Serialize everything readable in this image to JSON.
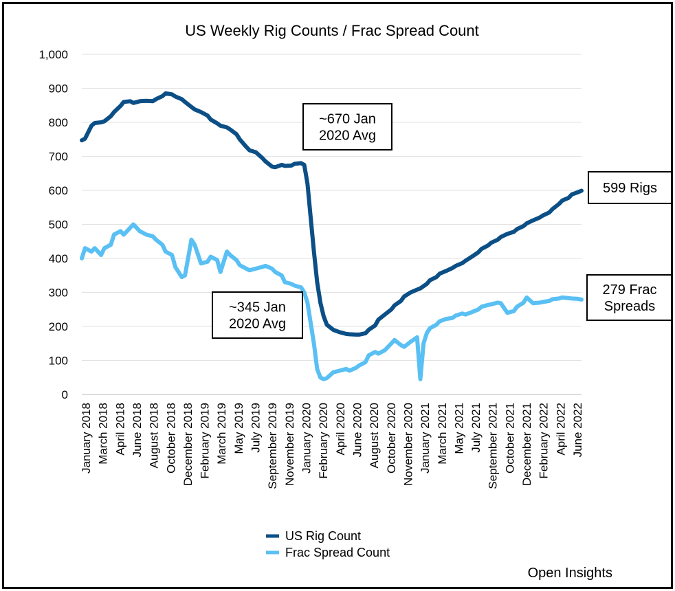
{
  "chart_data": {
    "type": "line",
    "title": "US Weekly Rig Counts / Frac Spread Count",
    "ylim": [
      0,
      1000
    ],
    "y_ticks": [
      "0",
      "100",
      "200",
      "300",
      "400",
      "500",
      "600",
      "700",
      "800",
      "900",
      "1,000"
    ],
    "x_ticks": [
      "January 2018",
      "March 2018",
      "April 2018",
      "June 2018",
      "August 2018",
      "October 2018",
      "December 2018",
      "February 2019",
      "March 2019",
      "May 2019",
      "July 2019",
      "September 2019",
      "November 2019",
      "January 2020",
      "February 2020",
      "April 2020",
      "June 2020",
      "August 2020",
      "October 2020",
      "November 2020",
      "January 2021",
      "March 2021",
      "May 2021",
      "July 2021",
      "September 2021",
      "October 2021",
      "December 2021",
      "February 2022",
      "April 2022",
      "June 2022"
    ],
    "grid": true,
    "legend_position": "bottom",
    "series": [
      {
        "name": "US Rig Count",
        "color": "#0b4f86",
        "points": [
          [
            0,
            747
          ],
          [
            1,
            752
          ],
          [
            3,
            790
          ],
          [
            4,
            798
          ],
          [
            6,
            800
          ],
          [
            7,
            803
          ],
          [
            9,
            818
          ],
          [
            10,
            830
          ],
          [
            12,
            848
          ],
          [
            13,
            860
          ],
          [
            15,
            862
          ],
          [
            16,
            857
          ],
          [
            18,
            862
          ],
          [
            20,
            863
          ],
          [
            22,
            862
          ],
          [
            23,
            868
          ],
          [
            25,
            877
          ],
          [
            26,
            885
          ],
          [
            28,
            882
          ],
          [
            29,
            876
          ],
          [
            31,
            868
          ],
          [
            32,
            860
          ],
          [
            34,
            845
          ],
          [
            35,
            838
          ],
          [
            37,
            830
          ],
          [
            39,
            820
          ],
          [
            40,
            808
          ],
          [
            42,
            797
          ],
          [
            43,
            790
          ],
          [
            45,
            785
          ],
          [
            46,
            779
          ],
          [
            48,
            765
          ],
          [
            49,
            750
          ],
          [
            51,
            728
          ],
          [
            52,
            718
          ],
          [
            54,
            712
          ],
          [
            56,
            695
          ],
          [
            57,
            685
          ],
          [
            59,
            670
          ],
          [
            60,
            668
          ],
          [
            62,
            675
          ],
          [
            63,
            672
          ],
          [
            65,
            673
          ],
          [
            66,
            678
          ],
          [
            68,
            680
          ],
          [
            69,
            675
          ],
          [
            70,
            620
          ],
          [
            71,
            520
          ],
          [
            72,
            420
          ],
          [
            73,
            330
          ],
          [
            74,
            270
          ],
          [
            75,
            230
          ],
          [
            76,
            205
          ],
          [
            78,
            190
          ],
          [
            80,
            183
          ],
          [
            82,
            178
          ],
          [
            83,
            177
          ],
          [
            85,
            176
          ],
          [
            86,
            176
          ],
          [
            88,
            180
          ],
          [
            89,
            190
          ],
          [
            91,
            203
          ],
          [
            92,
            220
          ],
          [
            94,
            235
          ],
          [
            96,
            250
          ],
          [
            97,
            262
          ],
          [
            99,
            275
          ],
          [
            100,
            288
          ],
          [
            102,
            300
          ],
          [
            104,
            308
          ],
          [
            105,
            312
          ],
          [
            107,
            325
          ],
          [
            108,
            336
          ],
          [
            110,
            345
          ],
          [
            111,
            355
          ],
          [
            113,
            363
          ],
          [
            115,
            372
          ],
          [
            116,
            378
          ],
          [
            118,
            386
          ],
          [
            119,
            393
          ],
          [
            121,
            405
          ],
          [
            123,
            418
          ],
          [
            124,
            428
          ],
          [
            126,
            438
          ],
          [
            127,
            446
          ],
          [
            129,
            455
          ],
          [
            130,
            463
          ],
          [
            132,
            472
          ],
          [
            134,
            478
          ],
          [
            135,
            486
          ],
          [
            137,
            495
          ],
          [
            138,
            503
          ],
          [
            140,
            512
          ],
          [
            142,
            520
          ],
          [
            143,
            526
          ],
          [
            145,
            535
          ],
          [
            146,
            545
          ],
          [
            148,
            560
          ],
          [
            149,
            570
          ],
          [
            151,
            578
          ],
          [
            152,
            588
          ],
          [
            154,
            595
          ],
          [
            155,
            599
          ]
        ]
      },
      {
        "name": "Frac Spread Count",
        "color": "#5ac0f4",
        "points": [
          [
            0,
            400
          ],
          [
            1,
            430
          ],
          [
            3,
            420
          ],
          [
            4,
            430
          ],
          [
            6,
            410
          ],
          [
            7,
            430
          ],
          [
            9,
            440
          ],
          [
            10,
            470
          ],
          [
            12,
            480
          ],
          [
            13,
            470
          ],
          [
            15,
            490
          ],
          [
            16,
            500
          ],
          [
            18,
            480
          ],
          [
            20,
            470
          ],
          [
            22,
            465
          ],
          [
            23,
            455
          ],
          [
            25,
            440
          ],
          [
            26,
            420
          ],
          [
            28,
            410
          ],
          [
            29,
            375
          ],
          [
            31,
            345
          ],
          [
            32,
            350
          ],
          [
            34,
            455
          ],
          [
            35,
            440
          ],
          [
            37,
            385
          ],
          [
            39,
            390
          ],
          [
            40,
            405
          ],
          [
            42,
            395
          ],
          [
            43,
            360
          ],
          [
            45,
            420
          ],
          [
            46,
            410
          ],
          [
            48,
            395
          ],
          [
            49,
            380
          ],
          [
            51,
            370
          ],
          [
            52,
            365
          ],
          [
            54,
            370
          ],
          [
            56,
            375
          ],
          [
            57,
            378
          ],
          [
            59,
            370
          ],
          [
            60,
            360
          ],
          [
            62,
            350
          ],
          [
            63,
            330
          ],
          [
            65,
            325
          ],
          [
            66,
            320
          ],
          [
            68,
            315
          ],
          [
            69,
            300
          ],
          [
            70,
            270
          ],
          [
            71,
            210
          ],
          [
            72,
            150
          ],
          [
            73,
            75
          ],
          [
            74,
            50
          ],
          [
            75,
            45
          ],
          [
            76,
            48
          ],
          [
            78,
            65
          ],
          [
            80,
            70
          ],
          [
            82,
            75
          ],
          [
            83,
            70
          ],
          [
            85,
            78
          ],
          [
            86,
            85
          ],
          [
            88,
            95
          ],
          [
            89,
            115
          ],
          [
            91,
            125
          ],
          [
            92,
            120
          ],
          [
            94,
            130
          ],
          [
            96,
            150
          ],
          [
            97,
            160
          ],
          [
            99,
            145
          ],
          [
            100,
            140
          ],
          [
            102,
            155
          ],
          [
            104,
            168
          ],
          [
            105,
            45
          ],
          [
            106,
            150
          ],
          [
            107,
            180
          ],
          [
            108,
            195
          ],
          [
            110,
            205
          ],
          [
            111,
            215
          ],
          [
            113,
            222
          ],
          [
            115,
            225
          ],
          [
            116,
            232
          ],
          [
            118,
            238
          ],
          [
            119,
            235
          ],
          [
            121,
            242
          ],
          [
            123,
            250
          ],
          [
            124,
            258
          ],
          [
            126,
            263
          ],
          [
            127,
            265
          ],
          [
            129,
            270
          ],
          [
            130,
            268
          ],
          [
            132,
            240
          ],
          [
            134,
            245
          ],
          [
            135,
            258
          ],
          [
            137,
            270
          ],
          [
            138,
            285
          ],
          [
            140,
            268
          ],
          [
            142,
            270
          ],
          [
            143,
            272
          ],
          [
            145,
            275
          ],
          [
            146,
            280
          ],
          [
            148,
            282
          ],
          [
            149,
            285
          ],
          [
            151,
            283
          ],
          [
            152,
            282
          ],
          [
            154,
            281
          ],
          [
            155,
            279
          ]
        ]
      }
    ],
    "x_count": 156,
    "annotations": [
      {
        "lines": [
          "~670 Jan",
          "2020 Avg"
        ]
      },
      {
        "lines": [
          "~345 Jan",
          "2020 Avg"
        ]
      },
      {
        "lines": [
          "599 Rigs"
        ]
      },
      {
        "lines": [
          "279 Frac",
          "Spreads"
        ]
      }
    ]
  },
  "source": "Open Insights"
}
